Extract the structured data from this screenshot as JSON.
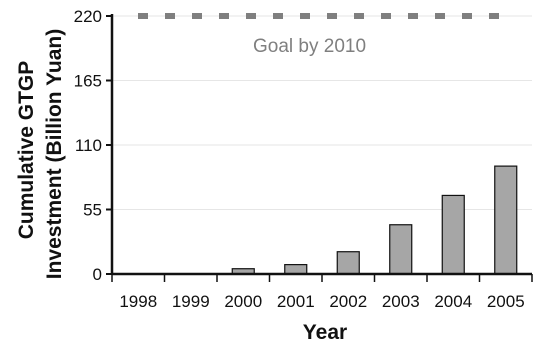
{
  "chart_data": {
    "type": "bar",
    "xlabel": "Year",
    "ylabel_line1": "Cumulative GTGP",
    "ylabel_line2": "Investment (Billion Yuan)",
    "categories": [
      "1998",
      "1999",
      "2000",
      "2001",
      "2002",
      "2003",
      "2004",
      "2005"
    ],
    "values": [
      0,
      0,
      4.5,
      8,
      19,
      42,
      67,
      92
    ],
    "ylim": [
      0,
      220
    ],
    "yticks": [
      "0",
      "55",
      "110",
      "165",
      "220"
    ],
    "goal": {
      "value": 220,
      "label": "Goal by 2010"
    },
    "grid": true,
    "colors": {
      "bar": "#a6a6a6",
      "bar_edge": "#111111",
      "goal_line": "#7f7f7f",
      "grid": "#e6e6e6"
    }
  }
}
